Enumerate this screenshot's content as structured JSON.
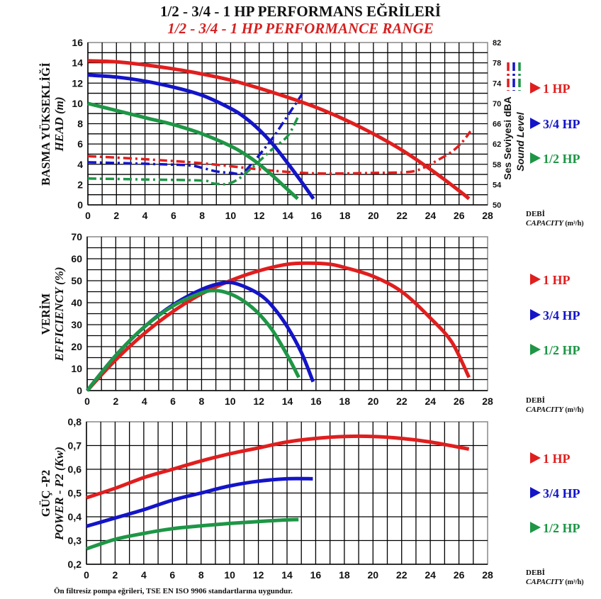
{
  "title": "1/2 - 3/4 - 1 HP PERFORMANS EĞRİLERİ",
  "subtitle": "1/2 - 3/4 - 1 HP PERFORMANCE RANGE",
  "footnote": "Ön filtresiz pompa eğrileri, TSE EN ISO 9906 standartlarına uygundur.",
  "colors": {
    "1hp": "#e01e1e",
    "3_4hp": "#1414c8",
    "1_2hp": "#1e9646",
    "grid": "#000000"
  },
  "legend": [
    {
      "key": "1hp",
      "label": "1 HP"
    },
    {
      "key": "3_4hp",
      "label": "3/4 HP"
    },
    {
      "key": "1_2hp",
      "label": "1/2 HP"
    }
  ],
  "xaxis": {
    "label_tr": "DEBİ",
    "label_en": "CAPACITY",
    "unit": "(m³/h)",
    "ticks": [
      0,
      2,
      4,
      6,
      8,
      10,
      12,
      14,
      16,
      18,
      20,
      22,
      24,
      26,
      28
    ],
    "xlim": [
      0,
      28
    ]
  },
  "chart_data": [
    {
      "id": "head",
      "type": "line",
      "title": "",
      "ylabel_tr": "BASMA YÜKSEKLİĞİ",
      "ylabel_en": "HEAD (m)",
      "ylim": [
        0,
        16
      ],
      "yticks": [
        0,
        2,
        4,
        6,
        8,
        10,
        12,
        14,
        16
      ],
      "grid": true,
      "series": [
        {
          "key": "1hp",
          "name": "1 HP",
          "style": "solid",
          "points": [
            [
              0,
              14.2
            ],
            [
              2,
              14.1
            ],
            [
              4,
              13.8
            ],
            [
              6,
              13.4
            ],
            [
              8,
              12.9
            ],
            [
              10,
              12.3
            ],
            [
              12,
              11.5
            ],
            [
              14,
              10.6
            ],
            [
              16,
              9.6
            ],
            [
              18,
              8.4
            ],
            [
              20,
              7.0
            ],
            [
              22,
              5.4
            ],
            [
              24,
              3.5
            ],
            [
              26,
              1.4
            ],
            [
              26.7,
              0.6
            ]
          ]
        },
        {
          "key": "3_4hp",
          "name": "3/4 HP",
          "style": "solid",
          "points": [
            [
              0,
              12.8
            ],
            [
              2,
              12.6
            ],
            [
              4,
              12.2
            ],
            [
              6,
              11.6
            ],
            [
              8,
              10.8
            ],
            [
              10,
              9.5
            ],
            [
              11,
              8.6
            ],
            [
              12,
              7.4
            ],
            [
              13,
              5.9
            ],
            [
              14,
              4.1
            ],
            [
              15,
              2.2
            ],
            [
              15.8,
              0.6
            ]
          ]
        },
        {
          "key": "1_2hp",
          "name": "1/2 HP",
          "style": "solid",
          "points": [
            [
              0,
              10.0
            ],
            [
              2,
              9.3
            ],
            [
              4,
              8.6
            ],
            [
              6,
              7.9
            ],
            [
              8,
              7.0
            ],
            [
              10,
              5.8
            ],
            [
              11,
              5.0
            ],
            [
              12,
              4.0
            ],
            [
              13,
              2.8
            ],
            [
              14,
              1.5
            ],
            [
              14.7,
              0.6
            ]
          ]
        }
      ],
      "secondary_axis": {
        "label_tr": "Ses Seviyesi dBA",
        "label_en": "Sound Level",
        "ylim": [
          50,
          82
        ],
        "yticks": [
          50,
          54,
          58,
          62,
          66,
          70,
          74,
          78,
          82
        ],
        "series": [
          {
            "key": "1hp",
            "name": "1 HP sound level",
            "style": "dash-dot",
            "points": [
              [
                0,
                59.6
              ],
              [
                4,
                59.0
              ],
              [
                8,
                58.2
              ],
              [
                12,
                57.0
              ],
              [
                14,
                56.5
              ],
              [
                16,
                56.2
              ],
              [
                18,
                56.2
              ],
              [
                20,
                56.3
              ],
              [
                22.5,
                56.5
              ],
              [
                23.5,
                57.3
              ],
              [
                24.5,
                58.8
              ],
              [
                25.5,
                60.5
              ],
              [
                26.2,
                62.3
              ],
              [
                26.8,
                64.5
              ]
            ]
          },
          {
            "key": "3_4hp",
            "name": "3/4 HP sound level",
            "style": "dash-dot",
            "points": [
              [
                0,
                58.4
              ],
              [
                4,
                58.1
              ],
              [
                7,
                57.8
              ],
              [
                8,
                57.3
              ],
              [
                9,
                56.6
              ],
              [
                10,
                56.3
              ],
              [
                10.8,
                56.2
              ],
              [
                11.5,
                58.2
              ],
              [
                12,
                59.8
              ],
              [
                13,
                63.4
              ],
              [
                14,
                67.6
              ],
              [
                15,
                71.8
              ]
            ]
          },
          {
            "key": "1_2hp",
            "name": "1/2 HP sound level",
            "style": "dash-dot",
            "points": [
              [
                0,
                55.2
              ],
              [
                4,
                55.0
              ],
              [
                8,
                54.8
              ],
              [
                8.6,
                54.3
              ],
              [
                9.3,
                54.1
              ],
              [
                9.9,
                54.2
              ],
              [
                10.6,
                55.2
              ],
              [
                11.2,
                56.6
              ],
              [
                12,
                58.6
              ],
              [
                13,
                61.2
              ],
              [
                14,
                63.6
              ],
              [
                14.7,
                67.2
              ]
            ]
          }
        ]
      }
    },
    {
      "id": "efficiency",
      "type": "line",
      "ylabel_tr": "VERİM",
      "ylabel_en": "EFFICIENCY (%)",
      "ylim": [
        0,
        70
      ],
      "yticks": [
        0,
        10,
        20,
        30,
        40,
        50,
        60,
        70
      ],
      "grid": true,
      "series": [
        {
          "key": "1hp",
          "name": "1 HP",
          "style": "solid",
          "points": [
            [
              0,
              0
            ],
            [
              2,
              14
            ],
            [
              4,
              26
            ],
            [
              6,
              36
            ],
            [
              8,
              44
            ],
            [
              10,
              50
            ],
            [
              12,
              54.5
            ],
            [
              14,
              57.5
            ],
            [
              15.5,
              58
            ],
            [
              17,
              57.5
            ],
            [
              18,
              56
            ],
            [
              20,
              52
            ],
            [
              22,
              45
            ],
            [
              24,
              33
            ],
            [
              25.5,
              22
            ],
            [
              26.7,
              6
            ]
          ]
        },
        {
          "key": "3_4hp",
          "name": "3/4 HP",
          "style": "solid",
          "points": [
            [
              0,
              0
            ],
            [
              2,
              16
            ],
            [
              4,
              29
            ],
            [
              6,
              39
            ],
            [
              8,
              46
            ],
            [
              9.5,
              49
            ],
            [
              10.5,
              48.5
            ],
            [
              12,
              44
            ],
            [
              13,
              38
            ],
            [
              14,
              29
            ],
            [
              15,
              17
            ],
            [
              15.8,
              4
            ]
          ]
        },
        {
          "key": "1_2hp",
          "name": "1/2 HP",
          "style": "solid",
          "points": [
            [
              0,
              0
            ],
            [
              2,
              16
            ],
            [
              4,
              29
            ],
            [
              6,
              38.5
            ],
            [
              8,
              44.5
            ],
            [
              9,
              45.5
            ],
            [
              10,
              44
            ],
            [
              11,
              40.5
            ],
            [
              12,
              35
            ],
            [
              13,
              27
            ],
            [
              14,
              16
            ],
            [
              14.8,
              6
            ]
          ]
        }
      ]
    },
    {
      "id": "power",
      "type": "line",
      "ylabel_tr": "GÜÇ -P2",
      "ylabel_en": "POWER - P2 (Kw)",
      "ylim": [
        0.2,
        0.8
      ],
      "yticks": [
        "0,2",
        "0,3",
        "0,4",
        "0,5",
        "0,6",
        "0,7",
        "0,8"
      ],
      "grid": true,
      "series": [
        {
          "key": "1hp",
          "name": "1 HP",
          "style": "solid",
          "points": [
            [
              0,
              0.48
            ],
            [
              2,
              0.52
            ],
            [
              4,
              0.565
            ],
            [
              6,
              0.6
            ],
            [
              8,
              0.635
            ],
            [
              10,
              0.665
            ],
            [
              12,
              0.69
            ],
            [
              14,
              0.715
            ],
            [
              16,
              0.73
            ],
            [
              18,
              0.738
            ],
            [
              20,
              0.738
            ],
            [
              22,
              0.73
            ],
            [
              24,
              0.715
            ],
            [
              26.7,
              0.685
            ]
          ]
        },
        {
          "key": "3_4hp",
          "name": "3/4 HP",
          "style": "solid",
          "points": [
            [
              0,
              0.36
            ],
            [
              2,
              0.395
            ],
            [
              4,
              0.43
            ],
            [
              6,
              0.47
            ],
            [
              8,
              0.5
            ],
            [
              10,
              0.53
            ],
            [
              12,
              0.55
            ],
            [
              14,
              0.56
            ],
            [
              15.8,
              0.56
            ]
          ]
        },
        {
          "key": "1_2hp",
          "name": "1/2 HP",
          "style": "solid",
          "points": [
            [
              0,
              0.265
            ],
            [
              2,
              0.305
            ],
            [
              4,
              0.33
            ],
            [
              6,
              0.35
            ],
            [
              8,
              0.362
            ],
            [
              10,
              0.372
            ],
            [
              12,
              0.38
            ],
            [
              14,
              0.387
            ],
            [
              14.8,
              0.388
            ]
          ]
        }
      ]
    }
  ]
}
